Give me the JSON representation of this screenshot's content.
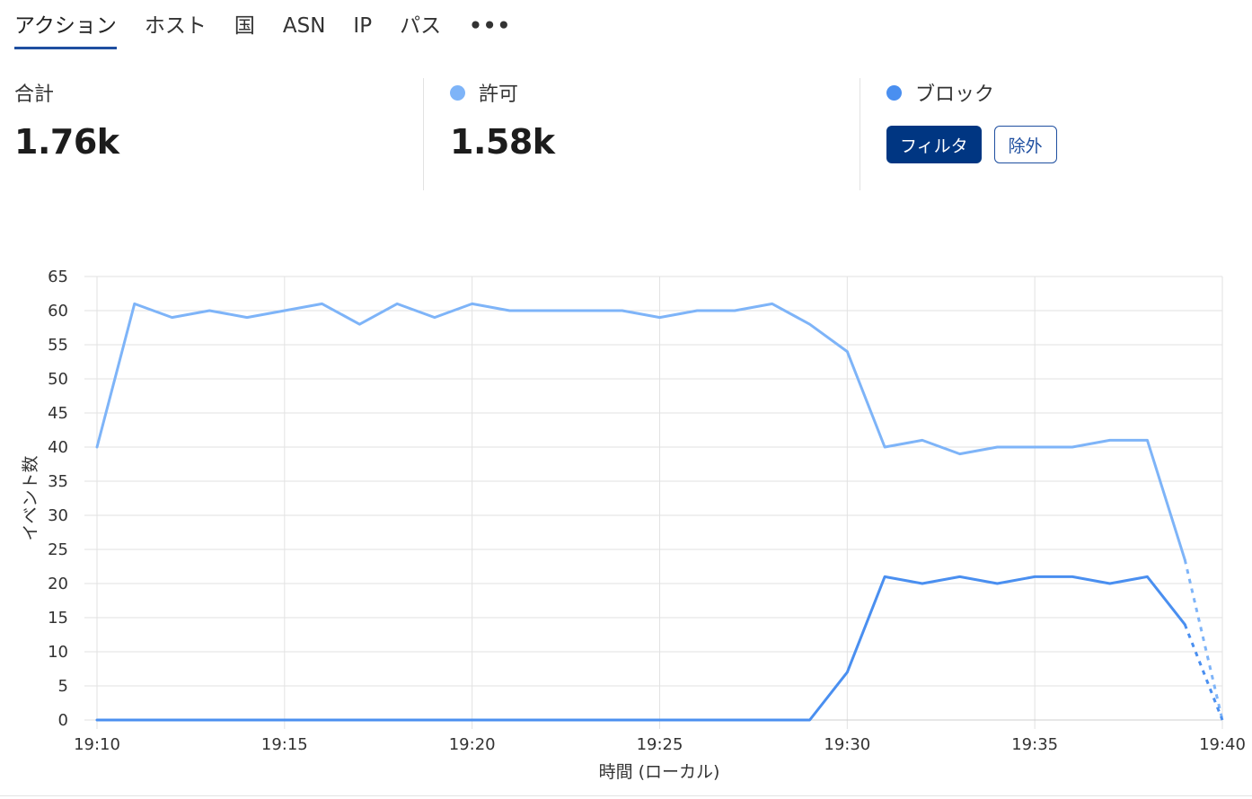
{
  "tabs": [
    {
      "label": "アクション"
    },
    {
      "label": "ホスト"
    },
    {
      "label": "国"
    },
    {
      "label": "ASN"
    },
    {
      "label": "IP"
    },
    {
      "label": "パス"
    },
    {
      "label": "•••"
    }
  ],
  "stats": {
    "total": {
      "label": "合計",
      "value": "1.76k"
    },
    "allowed": {
      "label": "許可",
      "value": "1.58k",
      "color": "#7eb4f8"
    },
    "blocked": {
      "label": "ブロック",
      "color": "#4a8ff0",
      "filter_label": "フィルタ",
      "exclude_label": "除外"
    }
  },
  "chart_data": {
    "type": "line",
    "xlabel": "時間 (ローカル)",
    "ylabel": "イベント数",
    "x_ticks": [
      "19:10",
      "19:15",
      "19:20",
      "19:25",
      "19:30",
      "19:35",
      "19:40"
    ],
    "ylim": [
      0,
      65
    ],
    "y_ticks": [
      0,
      5,
      10,
      15,
      20,
      25,
      30,
      35,
      40,
      45,
      50,
      55,
      60,
      65
    ],
    "x": [
      "19:10",
      "19:11",
      "19:12",
      "19:13",
      "19:14",
      "19:15",
      "19:16",
      "19:17",
      "19:18",
      "19:19",
      "19:20",
      "19:21",
      "19:22",
      "19:23",
      "19:24",
      "19:25",
      "19:26",
      "19:27",
      "19:28",
      "19:29",
      "19:30",
      "19:31",
      "19:32",
      "19:33",
      "19:34",
      "19:35",
      "19:36",
      "19:37",
      "19:38",
      "19:39",
      "19:40"
    ],
    "grid": true,
    "series": [
      {
        "name": "許可",
        "color": "#7eb4f8",
        "values": [
          40,
          61,
          59,
          60,
          59,
          60,
          61,
          58,
          61,
          59,
          61,
          60,
          60,
          60,
          60,
          59,
          60,
          60,
          61,
          58,
          54,
          40,
          41,
          39,
          40,
          40,
          40,
          41,
          41,
          23.5,
          0
        ],
        "dashed_from": "19:39"
      },
      {
        "name": "ブロック",
        "color": "#4a8ff0",
        "values": [
          0,
          0,
          0,
          0,
          0,
          0,
          0,
          0,
          0,
          0,
          0,
          0,
          0,
          0,
          0,
          0,
          0,
          0,
          0,
          0,
          7,
          21,
          20,
          21,
          20,
          21,
          21,
          20,
          21,
          14,
          0
        ],
        "dashed_from": "19:39"
      }
    ]
  }
}
